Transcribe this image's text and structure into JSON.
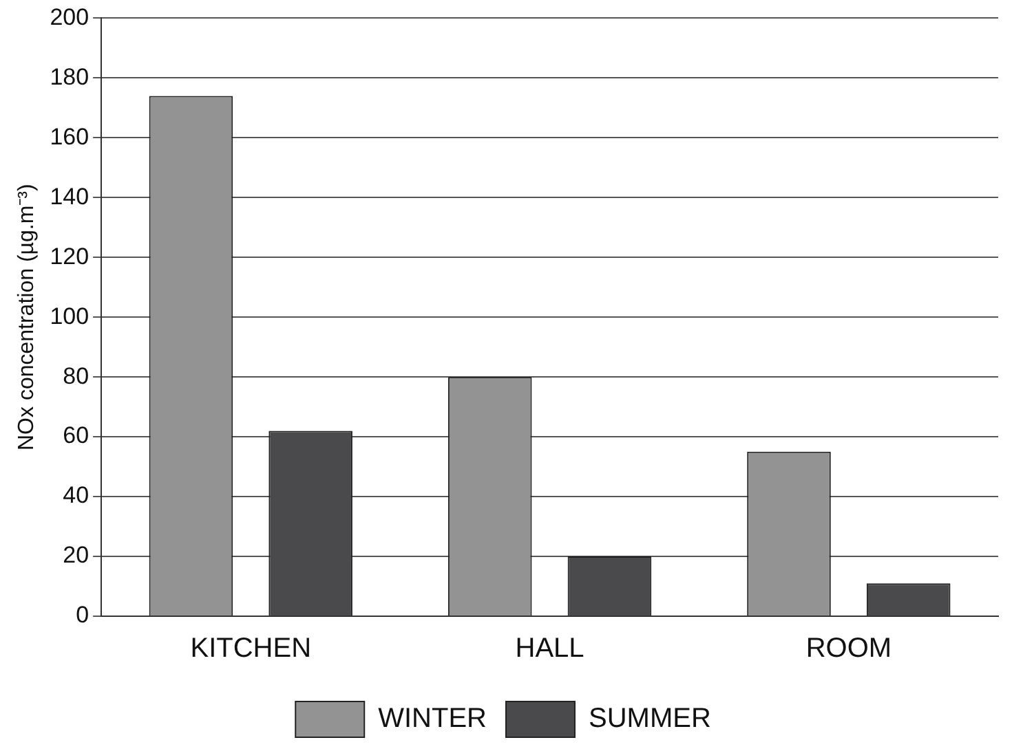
{
  "chart_data": {
    "type": "bar",
    "ylabel": "NOx concentration (µg.m⁻³)",
    "categories": [
      "KITCHEN",
      "HALL",
      "ROOM"
    ],
    "series": [
      {
        "name": "WINTER",
        "color": "#939393",
        "values": [
          174,
          80,
          55
        ]
      },
      {
        "name": "SUMMER",
        "color": "#4a4a4c",
        "values": [
          62,
          20,
          11
        ]
      }
    ],
    "ylim": [
      0,
      200
    ],
    "yticks": [
      0,
      20,
      40,
      60,
      80,
      100,
      120,
      140,
      160,
      180,
      200
    ],
    "grid": "y",
    "legend": "bottom"
  }
}
